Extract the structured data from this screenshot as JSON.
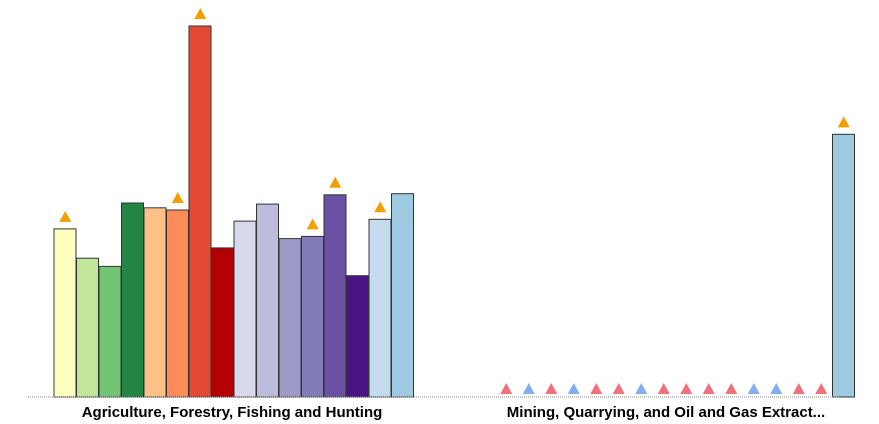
{
  "chart_data": {
    "type": "bar",
    "title": "",
    "xlabel": "",
    "ylabel": "",
    "ylim": [
      0,
      100
    ],
    "grid": false,
    "legend": "none",
    "categories": [
      "Agriculture, Forestry, Fishing and Hunting",
      "Mining, Quarrying, and Oil and Gas Extract..."
    ],
    "groups": [
      {
        "category": "Agriculture, Forestry, Fishing and Hunting",
        "bars": [
          {
            "value": 45.3,
            "color": "#ffffc0",
            "marker": "up-orange"
          },
          {
            "value": 37.4,
            "color": "#c2e59c",
            "marker": null
          },
          {
            "value": 35.2,
            "color": "#74c476",
            "marker": null
          },
          {
            "value": 52.3,
            "color": "#238443",
            "marker": null
          },
          {
            "value": 51.0,
            "color": "#fdc086",
            "marker": null
          },
          {
            "value": 50.4,
            "color": "#fc8d59",
            "marker": "up-orange"
          },
          {
            "value": 100.0,
            "color": "#e34a33",
            "marker": "up-orange"
          },
          {
            "value": 40.2,
            "color": "#b30000",
            "marker": null
          },
          {
            "value": 47.4,
            "color": "#d9d9ee",
            "marker": null
          },
          {
            "value": 52.0,
            "color": "#bcbddc",
            "marker": null
          },
          {
            "value": 42.7,
            "color": "#9e9ac8",
            "marker": null
          },
          {
            "value": 43.3,
            "color": "#807dba",
            "marker": "up-orange"
          },
          {
            "value": 54.5,
            "color": "#6a51a3",
            "marker": "up-orange"
          },
          {
            "value": 32.7,
            "color": "#4a1486",
            "marker": null
          },
          {
            "value": 47.9,
            "color": "#c6dbef",
            "marker": "up-orange"
          },
          {
            "value": 54.8,
            "color": "#9ecae1",
            "marker": null
          }
        ]
      },
      {
        "category": "Mining, Quarrying, and Oil and Gas Extract...",
        "bars": [
          {
            "value": 0,
            "color": "#ffffc0",
            "marker": "up-red"
          },
          {
            "value": 0,
            "color": "#c2e59c",
            "marker": "up-blue"
          },
          {
            "value": 0,
            "color": "#74c476",
            "marker": "up-red"
          },
          {
            "value": 0,
            "color": "#238443",
            "marker": "up-blue"
          },
          {
            "value": 0,
            "color": "#fdc086",
            "marker": "up-red"
          },
          {
            "value": 0,
            "color": "#fc8d59",
            "marker": "up-red"
          },
          {
            "value": 0,
            "color": "#e34a33",
            "marker": "up-blue"
          },
          {
            "value": 0,
            "color": "#b30000",
            "marker": "up-red"
          },
          {
            "value": 0,
            "color": "#d9d9ee",
            "marker": "up-red"
          },
          {
            "value": 0,
            "color": "#bcbddc",
            "marker": "up-red"
          },
          {
            "value": 0,
            "color": "#9e9ac8",
            "marker": "up-red"
          },
          {
            "value": 0,
            "color": "#807dba",
            "marker": "up-blue"
          },
          {
            "value": 0,
            "color": "#6a51a3",
            "marker": "up-blue"
          },
          {
            "value": 0,
            "color": "#4a1486",
            "marker": "up-red"
          },
          {
            "value": 0,
            "color": "#c6dbef",
            "marker": "up-red"
          },
          {
            "value": 70.8,
            "color": "#9ecae1",
            "marker": "up-orange"
          }
        ]
      }
    ],
    "marker_colors": {
      "up-orange": "#f0a000",
      "up-red": "#f0707e",
      "up-blue": "#80aef0"
    }
  }
}
